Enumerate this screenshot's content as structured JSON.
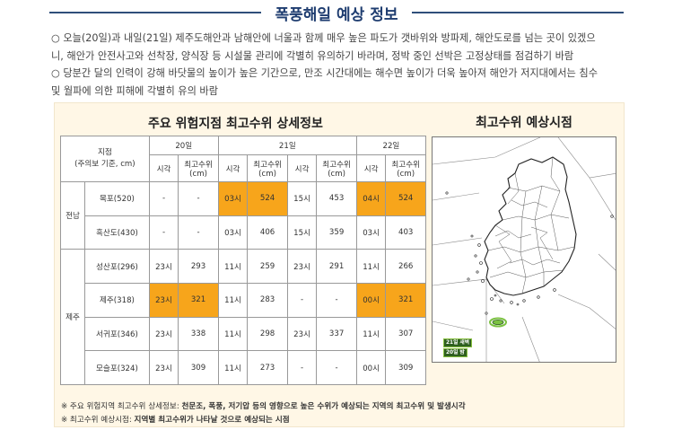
{
  "header": {
    "title": "폭풍해일 예상 정보"
  },
  "bullets": [
    "○ 오늘(20일)과 내일(21일) 제주도해안과 남해안에 너울과 함께 매우 높은 파도가 갯바위와 방파제, 해안도로를 넘는 곳이 있겠으",
    "니, 해안가 안전사고와 선착장, 양식장 등 시설물 관리에 각별히 유의하기 바라며, 정박 중인 선박은 고정상태를 점검하기 바람",
    "○ 당분간 달의 인력이 강해 바닷물의 높이가 높은 기간으로, 만조 시간대에는 해수면 높이가 더욱 높아져 해안가 저지대에서는 침수",
    "및 월파에 의한 피해에 각별히 유의 바람"
  ],
  "table": {
    "title": "주요 위험지점 최고수위 상세정보",
    "header_site": [
      "지점",
      "(주의보 기준, cm)"
    ],
    "days": [
      "20일",
      "21일",
      "22일"
    ],
    "sub_time": "시각",
    "sub_val": [
      "최고수위",
      "(cm)"
    ],
    "regions": [
      "전남",
      "제주"
    ],
    "rows": [
      {
        "site": "목포(520)",
        "cells": [
          "-",
          "-",
          "03시",
          "524",
          "15시",
          "453",
          "04시",
          "524"
        ],
        "highlight": [
          false,
          false,
          true,
          true,
          false,
          false,
          true,
          true
        ]
      },
      {
        "site": "흑산도(430)",
        "cells": [
          "-",
          "-",
          "03시",
          "406",
          "15시",
          "359",
          "03시",
          "403"
        ],
        "highlight": [
          false,
          false,
          false,
          false,
          false,
          false,
          false,
          false
        ]
      },
      {
        "site": "성산포(296)",
        "cells": [
          "23시",
          "293",
          "11시",
          "259",
          "23시",
          "291",
          "11시",
          "266"
        ],
        "highlight": [
          false,
          false,
          false,
          false,
          false,
          false,
          false,
          false
        ]
      },
      {
        "site": "제주(318)",
        "cells": [
          "23시",
          "321",
          "11시",
          "283",
          "-",
          "-",
          "00시",
          "321"
        ],
        "highlight": [
          true,
          true,
          false,
          false,
          false,
          false,
          true,
          true
        ]
      },
      {
        "site": "서귀포(346)",
        "cells": [
          "23시",
          "338",
          "11시",
          "298",
          "23시",
          "337",
          "11시",
          "307"
        ],
        "highlight": [
          false,
          false,
          false,
          false,
          false,
          false,
          false,
          false
        ]
      },
      {
        "site": "모슬포(324)",
        "cells": [
          "23시",
          "309",
          "11시",
          "273",
          "-",
          "-",
          "00시",
          "309"
        ],
        "highlight": [
          false,
          false,
          false,
          false,
          false,
          false,
          false,
          false
        ]
      }
    ]
  },
  "map": {
    "title": "최고수위 예상시점",
    "labels": [
      "21일 새벽",
      "20일 밤"
    ],
    "colors": {
      "land_fill": "#ffffff",
      "land_stroke": "#222222",
      "highlight_fill": "#7cc242",
      "label_bg": "#2e5f1f"
    }
  },
  "notes": [
    {
      "prefix": "※ 주요 위험지역 최고수위 상세정보: ",
      "text": "천문조, 폭풍, 저기압 등의 영향으로 높은 수위가 예상되는 지역의 최고수위 및 발생시각"
    },
    {
      "prefix": "※ 최고수위 예상시점: ",
      "text": "지역별 최고수위가 나타날 것으로 예상되는 시점"
    }
  ],
  "colors": {
    "accent": "#1f3d70",
    "highlight": "#f7a51b",
    "panel_bg": "#fff7e6"
  }
}
